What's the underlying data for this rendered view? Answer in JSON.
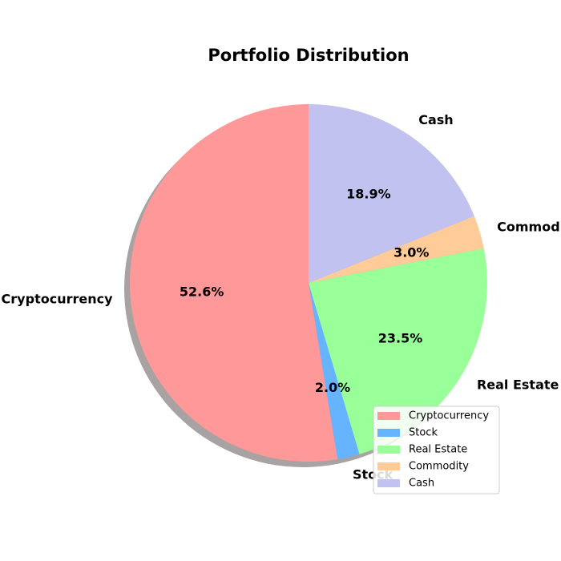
{
  "chart_data": {
    "type": "pie",
    "title": "Portfolio Distribution",
    "categories": [
      "Cryptocurrency",
      "Stock",
      "Real Estate",
      "Commodity",
      "Cash"
    ],
    "values": [
      52.6,
      2.0,
      23.5,
      3.0,
      18.9
    ],
    "percent_labels": [
      "52.6%",
      "2.0%",
      "23.5%",
      "3.0%",
      "18.9%"
    ],
    "colors": [
      "#ff9999",
      "#66b3ff",
      "#99ff99",
      "#ffcc99",
      "#c2c2f0"
    ],
    "start_angle_deg": 90,
    "direction": "counterclockwise",
    "shadow": true,
    "legend": {
      "placement": "lower-right",
      "entries": [
        "Cryptocurrency",
        "Stock",
        "Real Estate",
        "Commodity",
        "Cash"
      ]
    }
  }
}
